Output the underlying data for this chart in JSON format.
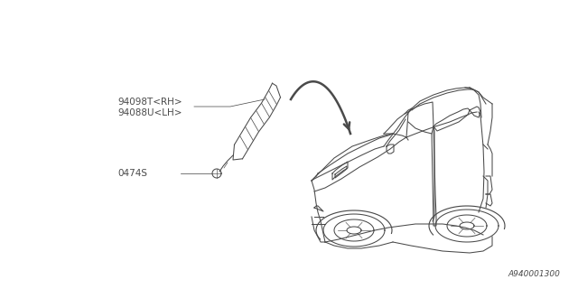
{
  "bg_color": "#ffffff",
  "line_color": "#4a4a4a",
  "text_color": "#4a4a4a",
  "label1": "94098T<RH>",
  "label2": "94088U<LH>",
  "label3": "0474S",
  "footer_text": "A940001300",
  "lw": 0.75
}
